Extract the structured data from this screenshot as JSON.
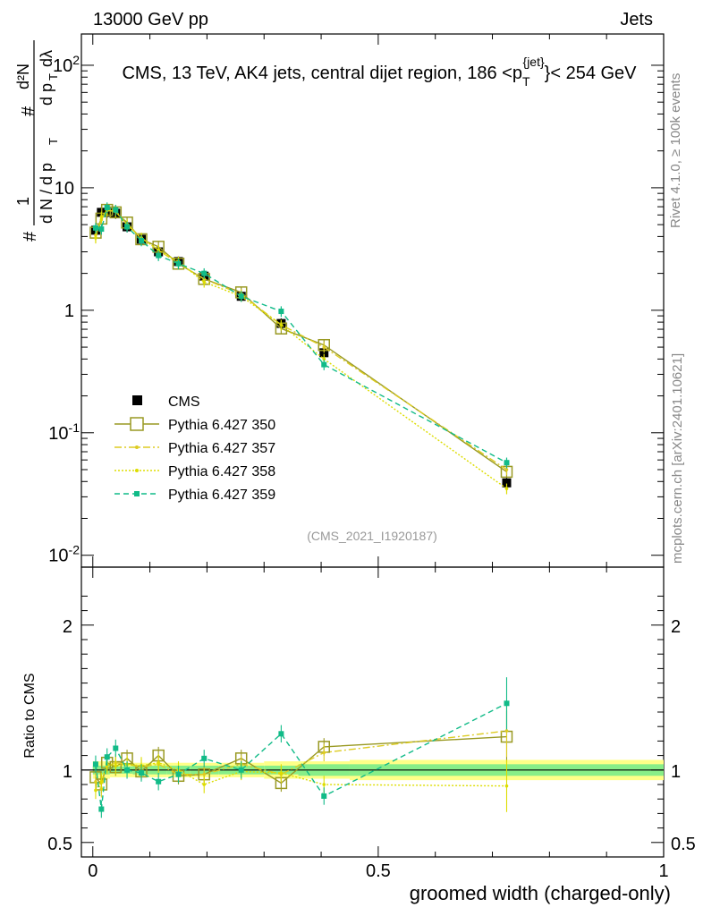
{
  "header": {
    "left": "13000 GeV pp",
    "right": "Jets",
    "side_top": "Rivet 4.1.0, ≥ 100k events",
    "side_bottom": "mcplots.cern.ch [arXiv:2401.10621]"
  },
  "chart_data": {
    "type": "line",
    "title_prefix": "CMS, 13 TeV, AK4 jets, central dijet region, 186 <p",
    "title_sub": "T",
    "title_sup": "{jet}",
    "title_suffix": "}< 254 GeV",
    "xlabel": "groomed width (charged-only)",
    "ylabel_main": "# 1/(d N / d pT) # d²N/(d pT dλ)",
    "ylabel_ratio": "Ratio to CMS",
    "analysis_tag": "(CMS_2021_I1920187)",
    "xlim": [
      -0.02,
      1.0
    ],
    "ylim_main": [
      0.008,
      180
    ],
    "ylim_ratio": [
      0.4,
      2.4
    ],
    "yscale_main": "log",
    "x_ticks": [
      "0",
      "0.5",
      "1"
    ],
    "y_ticks_main": [
      "10-2",
      "10-1",
      "1",
      "10",
      "102"
    ],
    "y_ticks_ratio": [
      "0.5",
      "1",
      "2"
    ],
    "x": [
      0.005,
      0.015,
      0.025,
      0.04,
      0.06,
      0.085,
      0.115,
      0.15,
      0.195,
      0.26,
      0.33,
      0.405,
      0.725
    ],
    "bins": [
      0,
      0.01,
      0.02,
      0.03,
      0.05,
      0.07,
      0.1,
      0.13,
      0.17,
      0.22,
      0.3,
      0.36,
      0.45,
      1.0
    ],
    "band_inner": [
      0.03,
      0.03,
      0.03,
      0.025,
      0.025,
      0.03,
      0.03,
      0.03,
      0.03,
      0.03,
      0.03,
      0.04,
      0.04
    ],
    "band_outer": [
      0.06,
      0.06,
      0.06,
      0.05,
      0.05,
      0.05,
      0.05,
      0.05,
      0.05,
      0.05,
      0.06,
      0.06,
      0.07
    ],
    "series": [
      {
        "name": "CMS",
        "color": "#000000",
        "style": "data",
        "values": [
          4.5,
          6.3,
          6.3,
          6.2,
          4.8,
          3.8,
          3.0,
          2.5,
          1.9,
          1.3,
          0.78,
          0.45,
          0.039
        ]
      },
      {
        "name": "Pythia 6.427 350",
        "color": "#999922",
        "style": "solid",
        "values": [
          4.3,
          5.6,
          6.6,
          6.3,
          5.2,
          3.8,
          3.3,
          2.4,
          1.8,
          1.4,
          0.71,
          0.52,
          0.048
        ],
        "ratio": [
          0.95,
          0.9,
          1.05,
          1.02,
          1.08,
          0.99,
          1.1,
          0.96,
          0.97,
          1.08,
          0.91,
          1.16,
          1.23
        ]
      },
      {
        "name": "Pythia 6.427 357",
        "color": "#ddcc22",
        "style": "dashdot",
        "values": [
          4.1,
          5.5,
          6.5,
          6.5,
          5.0,
          3.9,
          3.1,
          2.4,
          1.8,
          1.35,
          0.76,
          0.5,
          0.05
        ],
        "ratio": [
          0.92,
          0.87,
          1.03,
          1.05,
          1.04,
          1.02,
          1.04,
          0.97,
          0.97,
          1.04,
          0.97,
          1.12,
          1.27
        ]
      },
      {
        "name": "Pythia 6.427 358",
        "color": "#dddd00",
        "style": "dotted",
        "values": [
          3.9,
          5.8,
          6.6,
          6.4,
          5.0,
          3.9,
          3.1,
          2.5,
          1.7,
          1.3,
          0.76,
          0.4,
          0.035
        ],
        "ratio": [
          0.86,
          0.92,
          1.04,
          1.03,
          1.04,
          1.03,
          1.05,
          1.0,
          0.9,
          0.99,
          0.98,
          0.9,
          0.89
        ]
      },
      {
        "name": "Pythia 6.427 359",
        "color": "#11bb88",
        "style": "dashed",
        "values": [
          4.7,
          4.6,
          6.9,
          6.6,
          4.8,
          3.7,
          2.8,
          2.4,
          2.0,
          1.3,
          0.98,
          0.36,
          0.057
        ],
        "ratio": [
          1.04,
          0.73,
          1.09,
          1.15,
          1.0,
          0.98,
          0.92,
          0.97,
          1.08,
          1.0,
          1.25,
          0.82,
          1.46
        ]
      }
    ],
    "legend": [
      "CMS",
      "Pythia 6.427 350",
      "Pythia 6.427 357",
      "Pythia 6.427 358",
      "Pythia 6.427 359"
    ]
  }
}
